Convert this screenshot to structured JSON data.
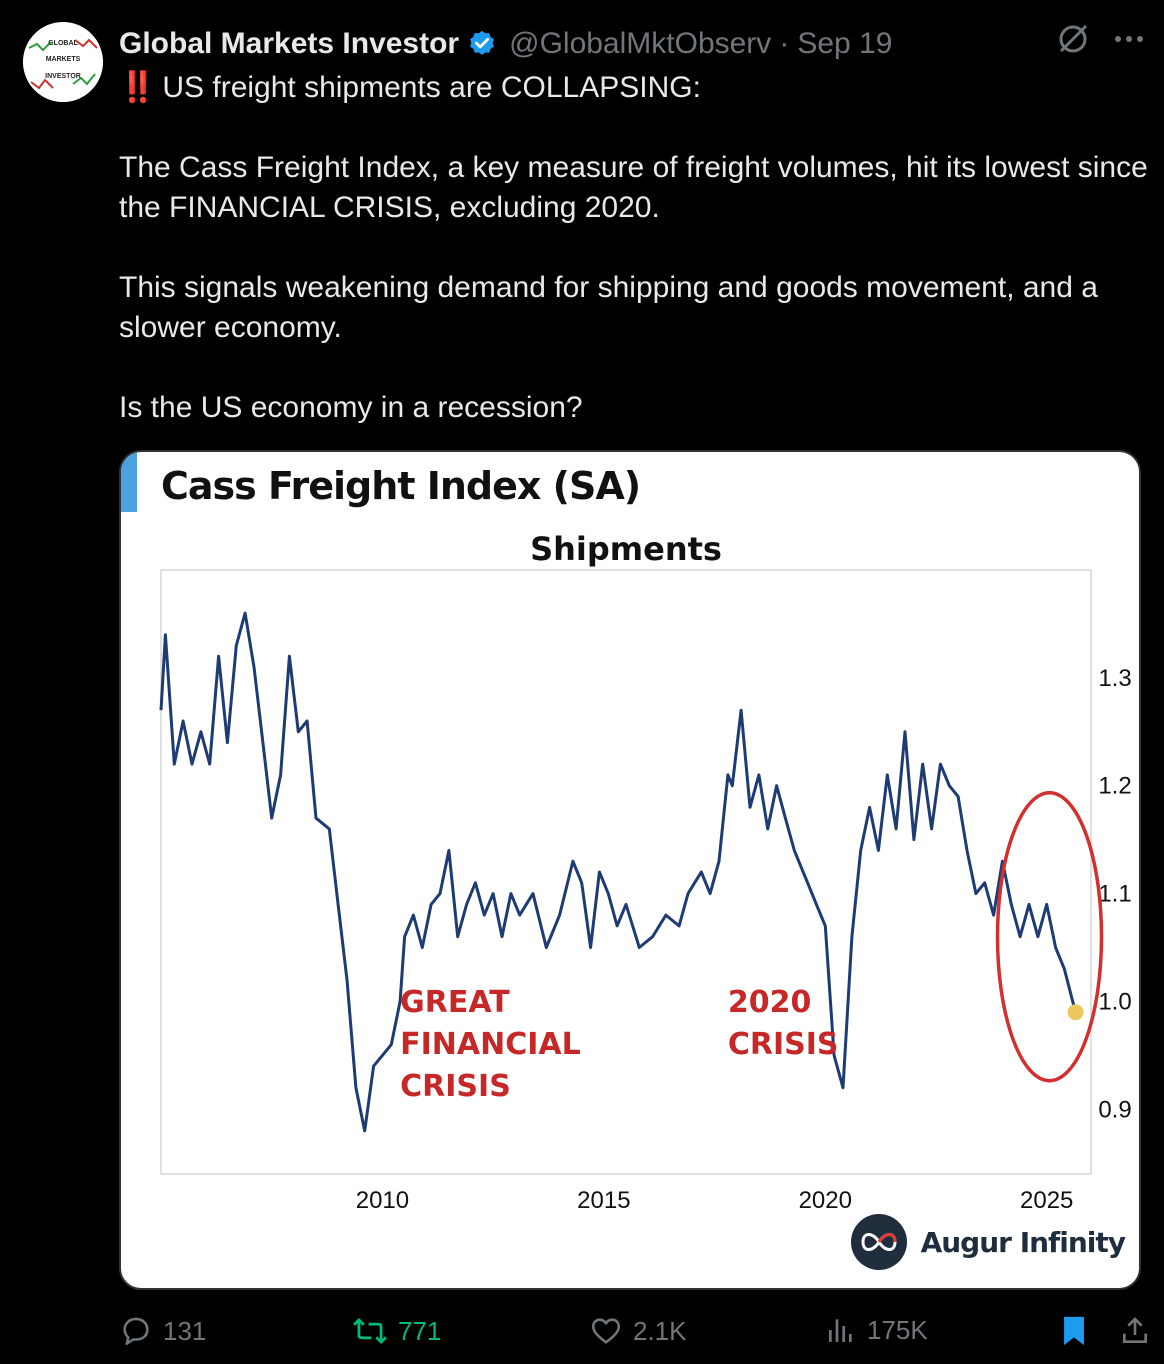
{
  "tweet": {
    "author_name": "Global Markets Investor",
    "handle": "@GlobalMktObserv",
    "separator": "·",
    "date": "Sep 19",
    "avatar": {
      "line1": "GLOBAL",
      "line2": "MARKETS",
      "line3": "INVESTOR"
    },
    "bang": "‼️",
    "line1": "US freight shipments are COLLAPSING:",
    "para2": "The Cass Freight Index, a key measure of freight volumes, hit its lowest since the FINANCIAL CRISIS, excluding 2020.",
    "para3": "This signals weakening demand for shipping and goods movement, and a slower economy.",
    "para4": "Is the US economy in a recession?"
  },
  "card": {
    "title": "Cass Freight Index (SA)",
    "brand_name": "Augur Infinity",
    "accent_color": "#4aa3df"
  },
  "chart_data": {
    "type": "line",
    "title": "Shipments",
    "xlabel": "",
    "ylabel": "",
    "xlim": [
      2005.0,
      2026.0
    ],
    "ylim": [
      0.84,
      1.4
    ],
    "x_ticks": [
      2010,
      2015,
      2020,
      2025
    ],
    "y_ticks": [
      0.9,
      1.0,
      1.1,
      1.2,
      1.3
    ],
    "y_axis_side": "right",
    "line_color": "#1f3b73",
    "series": [
      {
        "points": [
          [
            2005.0,
            1.27
          ],
          [
            2005.1,
            1.34
          ],
          [
            2005.3,
            1.22
          ],
          [
            2005.5,
            1.26
          ],
          [
            2005.7,
            1.22
          ],
          [
            2005.9,
            1.25
          ],
          [
            2006.1,
            1.22
          ],
          [
            2006.3,
            1.32
          ],
          [
            2006.5,
            1.24
          ],
          [
            2006.7,
            1.33
          ],
          [
            2006.9,
            1.36
          ],
          [
            2007.1,
            1.31
          ],
          [
            2007.3,
            1.24
          ],
          [
            2007.5,
            1.17
          ],
          [
            2007.7,
            1.21
          ],
          [
            2007.9,
            1.32
          ],
          [
            2008.1,
            1.25
          ],
          [
            2008.3,
            1.26
          ],
          [
            2008.5,
            1.17
          ],
          [
            2008.8,
            1.16
          ],
          [
            2009.0,
            1.09
          ],
          [
            2009.2,
            1.02
          ],
          [
            2009.4,
            0.92
          ],
          [
            2009.6,
            0.88
          ],
          [
            2009.8,
            0.94
          ],
          [
            2010.0,
            0.95
          ],
          [
            2010.2,
            0.96
          ],
          [
            2010.4,
            1.0
          ],
          [
            2010.5,
            1.06
          ],
          [
            2010.7,
            1.08
          ],
          [
            2010.9,
            1.05
          ],
          [
            2011.1,
            1.09
          ],
          [
            2011.3,
            1.1
          ],
          [
            2011.5,
            1.14
          ],
          [
            2011.7,
            1.06
          ],
          [
            2011.9,
            1.09
          ],
          [
            2012.1,
            1.11
          ],
          [
            2012.3,
            1.08
          ],
          [
            2012.5,
            1.1
          ],
          [
            2012.7,
            1.06
          ],
          [
            2012.9,
            1.1
          ],
          [
            2013.1,
            1.08
          ],
          [
            2013.4,
            1.1
          ],
          [
            2013.7,
            1.05
          ],
          [
            2014.0,
            1.08
          ],
          [
            2014.3,
            1.13
          ],
          [
            2014.5,
            1.11
          ],
          [
            2014.7,
            1.05
          ],
          [
            2014.9,
            1.12
          ],
          [
            2015.1,
            1.1
          ],
          [
            2015.3,
            1.07
          ],
          [
            2015.5,
            1.09
          ],
          [
            2015.8,
            1.05
          ],
          [
            2016.1,
            1.06
          ],
          [
            2016.4,
            1.08
          ],
          [
            2016.7,
            1.07
          ],
          [
            2016.9,
            1.1
          ],
          [
            2017.2,
            1.12
          ],
          [
            2017.4,
            1.1
          ],
          [
            2017.6,
            1.13
          ],
          [
            2017.8,
            1.21
          ],
          [
            2017.9,
            1.2
          ],
          [
            2018.1,
            1.27
          ],
          [
            2018.3,
            1.18
          ],
          [
            2018.5,
            1.21
          ],
          [
            2018.7,
            1.16
          ],
          [
            2018.9,
            1.2
          ],
          [
            2019.1,
            1.17
          ],
          [
            2019.3,
            1.14
          ],
          [
            2019.6,
            1.11
          ],
          [
            2019.8,
            1.09
          ],
          [
            2020.0,
            1.07
          ],
          [
            2020.2,
            0.95
          ],
          [
            2020.4,
            0.92
          ],
          [
            2020.6,
            1.06
          ],
          [
            2020.8,
            1.14
          ],
          [
            2021.0,
            1.18
          ],
          [
            2021.2,
            1.14
          ],
          [
            2021.4,
            1.21
          ],
          [
            2021.6,
            1.16
          ],
          [
            2021.8,
            1.25
          ],
          [
            2022.0,
            1.15
          ],
          [
            2022.2,
            1.22
          ],
          [
            2022.4,
            1.16
          ],
          [
            2022.6,
            1.22
          ],
          [
            2022.8,
            1.2
          ],
          [
            2023.0,
            1.19
          ],
          [
            2023.2,
            1.14
          ],
          [
            2023.4,
            1.1
          ],
          [
            2023.6,
            1.11
          ],
          [
            2023.8,
            1.08
          ],
          [
            2024.0,
            1.13
          ],
          [
            2024.2,
            1.09
          ],
          [
            2024.4,
            1.06
          ],
          [
            2024.6,
            1.09
          ],
          [
            2024.8,
            1.06
          ],
          [
            2025.0,
            1.09
          ],
          [
            2025.2,
            1.05
          ],
          [
            2025.4,
            1.03
          ],
          [
            2025.65,
            0.99
          ]
        ]
      }
    ],
    "annotations": [
      {
        "label": "GREAT FINANCIAL CRISIS",
        "lines": [
          "GREAT",
          "FINANCIAL",
          "CRISIS"
        ],
        "x": 2010.4,
        "y": 0.99,
        "color": "#c62828"
      },
      {
        "label": "2020 CRISIS",
        "lines": [
          "2020",
          "CRISIS"
        ],
        "x": 2017.8,
        "y": 0.99,
        "color": "#c62828"
      }
    ],
    "highlight": {
      "x": 2025.65,
      "y": 0.99,
      "marker_color": "#f0c75e",
      "ellipse_color": "#d32f2f"
    },
    "grid": false
  },
  "actions": {
    "replies": "131",
    "reposts": "771",
    "likes": "2.1K",
    "views": "175K"
  },
  "colors": {
    "background": "#000000",
    "text": "#e7e9ea",
    "muted": "#71767b",
    "verified": "#1d9bf0",
    "repost": "#00ba7c",
    "bookmark": "#1d9bf0"
  }
}
